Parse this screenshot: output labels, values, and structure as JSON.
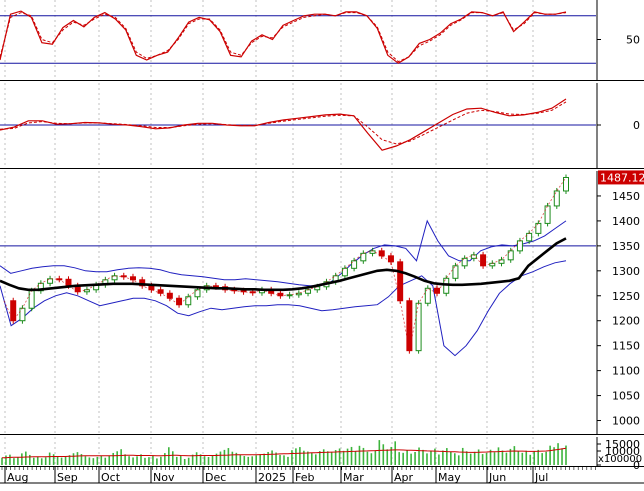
{
  "chart_data": [
    {
      "type": "line",
      "panel": "stochastic-oscillator",
      "y_ticks": [
        {
          "value": 50,
          "label": "50"
        }
      ],
      "ylim": [
        0,
        100
      ],
      "reference_lines": [
        80,
        20
      ],
      "colors": {
        "fast": "#cc0000",
        "slow": "#cc0000",
        "reference": "#1414a0"
      },
      "series": [
        {
          "style": "solid",
          "values": [
            24,
            82,
            86,
            78,
            46,
            44,
            65,
            74,
            66,
            78,
            84,
            76,
            62,
            30,
            24,
            30,
            34,
            52,
            72,
            78,
            75,
            60,
            30,
            28,
            48,
            56,
            50,
            68,
            74,
            80,
            82,
            82,
            80,
            85,
            85,
            80,
            64,
            30,
            20,
            28,
            45,
            50,
            58,
            70,
            76,
            85,
            84,
            80,
            85,
            60,
            72,
            85,
            82,
            82,
            85
          ]
        },
        {
          "style": "dashed",
          "values": [
            28,
            78,
            84,
            80,
            50,
            46,
            62,
            72,
            68,
            76,
            82,
            78,
            64,
            34,
            26,
            30,
            36,
            50,
            70,
            76,
            76,
            62,
            34,
            30,
            46,
            54,
            52,
            66,
            72,
            78,
            80,
            82,
            80,
            84,
            84,
            80,
            66,
            34,
            22,
            28,
            42,
            48,
            56,
            68,
            75,
            84,
            84,
            80,
            84,
            62,
            70,
            84,
            82,
            82,
            84
          ]
        }
      ]
    },
    {
      "type": "line",
      "panel": "macd",
      "y_ticks": [
        {
          "value": 0,
          "label": "0"
        }
      ],
      "ylim": [
        -1,
        1
      ],
      "reference_lines": [
        0
      ],
      "series": [
        {
          "style": "solid",
          "values": [
            -0.12,
            -0.05,
            0.1,
            0.1,
            0.02,
            0.03,
            0.06,
            0.05,
            0.02,
            0.0,
            -0.04,
            -0.09,
            -0.07,
            0.0,
            0.04,
            0.04,
            0.0,
            -0.02,
            -0.02,
            0.06,
            0.12,
            0.16,
            0.2,
            0.24,
            0.26,
            0.22,
            -0.2,
            -0.6,
            -0.5,
            -0.35,
            -0.15,
            0.05,
            0.25,
            0.38,
            0.4,
            0.3,
            0.22,
            0.24,
            0.3,
            0.4,
            0.62
          ]
        },
        {
          "style": "dashed",
          "values": [
            -0.1,
            -0.08,
            0.05,
            0.08,
            0.04,
            0.03,
            0.05,
            0.05,
            0.03,
            0.01,
            -0.02,
            -0.06,
            -0.06,
            -0.02,
            0.02,
            0.03,
            0.01,
            -0.01,
            -0.01,
            0.04,
            0.09,
            0.13,
            0.17,
            0.21,
            0.23,
            0.22,
            -0.05,
            -0.35,
            -0.45,
            -0.38,
            -0.22,
            -0.05,
            0.12,
            0.28,
            0.35,
            0.32,
            0.26,
            0.25,
            0.28,
            0.35,
            0.55
          ]
        }
      ]
    },
    {
      "type": "candlestick",
      "panel": "price",
      "ylim": [
        975,
        1500
      ],
      "y_ticks": [
        {
          "value": 1000,
          "label": "1000"
        },
        {
          "value": 1050,
          "label": "1050"
        },
        {
          "value": 1100,
          "label": "1100"
        },
        {
          "value": 1150,
          "label": "1150"
        },
        {
          "value": 1200,
          "label": "1200"
        },
        {
          "value": 1250,
          "label": "1250"
        },
        {
          "value": 1300,
          "label": "1300"
        },
        {
          "value": 1350,
          "label": "1350"
        },
        {
          "value": 1400,
          "label": "1400"
        },
        {
          "value": 1450,
          "label": "1450"
        }
      ],
      "last_price": {
        "value": 1487.12,
        "label": "1487.120",
        "color": "#cc0000"
      },
      "reference_lines": [
        1350
      ],
      "close": [
        1240,
        1200,
        1225,
        1260,
        1275,
        1284,
        1283,
        1270,
        1258,
        1262,
        1272,
        1282,
        1290,
        1288,
        1282,
        1270,
        1262,
        1255,
        1245,
        1232,
        1248,
        1262,
        1270,
        1268,
        1262,
        1260,
        1258,
        1256,
        1262,
        1255,
        1250,
        1252,
        1255,
        1262,
        1268,
        1278,
        1290,
        1305,
        1320,
        1335,
        1340,
        1330,
        1318,
        1240,
        1140,
        1235,
        1265,
        1255,
        1285,
        1310,
        1325,
        1332,
        1310,
        1315,
        1322,
        1340,
        1360,
        1375,
        1395,
        1430,
        1460,
        1487
      ],
      "ma_slow": [
        1280,
        1272,
        1265,
        1262,
        1262,
        1264,
        1266,
        1268,
        1270,
        1271,
        1272,
        1273,
        1274,
        1274,
        1274,
        1273,
        1272,
        1271,
        1270,
        1269,
        1268,
        1267,
        1266,
        1265,
        1265,
        1264,
        1263,
        1263,
        1262,
        1262,
        1262,
        1263,
        1265,
        1268,
        1272,
        1276,
        1280,
        1285,
        1290,
        1295,
        1300,
        1302,
        1300,
        1295,
        1288,
        1280,
        1275,
        1273,
        1272,
        1272,
        1273,
        1274,
        1276,
        1278,
        1280,
        1285,
        1310,
        1325,
        1340,
        1355,
        1365
      ],
      "bollinger_upper": [
        1310,
        1295,
        1300,
        1305,
        1308,
        1310,
        1310,
        1306,
        1300,
        1298,
        1298,
        1302,
        1305,
        1306,
        1305,
        1302,
        1296,
        1292,
        1290,
        1288,
        1285,
        1282,
        1282,
        1284,
        1282,
        1280,
        1278,
        1275,
        1272,
        1270,
        1270,
        1278,
        1295,
        1315,
        1332,
        1345,
        1352,
        1350,
        1345,
        1320,
        1400,
        1360,
        1330,
        1320,
        1320,
        1340,
        1348,
        1352,
        1350,
        1354,
        1360,
        1370,
        1385,
        1400
      ],
      "bollinger_lower": [
        1270,
        1190,
        1205,
        1225,
        1240,
        1250,
        1256,
        1250,
        1240,
        1230,
        1235,
        1240,
        1245,
        1245,
        1240,
        1230,
        1215,
        1210,
        1218,
        1225,
        1222,
        1225,
        1228,
        1230,
        1230,
        1232,
        1232,
        1230,
        1225,
        1220,
        1222,
        1225,
        1228,
        1230,
        1232,
        1248,
        1270,
        1280,
        1290,
        1270,
        1150,
        1130,
        1150,
        1180,
        1220,
        1255,
        1275,
        1290,
        1298,
        1308,
        1316,
        1320
      ]
    },
    {
      "type": "bar",
      "panel": "volume",
      "ylabel": "x100000",
      "ylim": [
        0,
        20000
      ],
      "y_ticks": [
        {
          "value": 15000,
          "label": "15000"
        },
        {
          "value": 10000,
          "label": "10000"
        },
        {
          "value": 0,
          "label": "0"
        }
      ],
      "ma_label": "0",
      "colors": {
        "bar": "#3cb43c",
        "ma": "#cc0000"
      },
      "values": [
        5200,
        6800,
        7400,
        4900,
        5600,
        8300,
        9600,
        7200,
        5200,
        6100,
        4800,
        5500,
        8900,
        7700,
        6100,
        5300,
        5900,
        7000,
        8400,
        9200,
        7800,
        6300,
        5400,
        4900,
        5800,
        6700,
        5200,
        6400,
        8600,
        9800,
        11300,
        7600,
        6300,
        5400,
        6200,
        7600,
        5100,
        5600,
        6900,
        4700,
        5900,
        8500,
        12700,
        9800,
        5800,
        6400,
        4300,
        5200,
        7400,
        9100,
        7600,
        6300,
        5700,
        6600,
        8100,
        9600,
        10800,
        12100,
        9500,
        8700,
        7100,
        6400,
        5800,
        6200,
        6900,
        7700,
        8100,
        9300,
        10400,
        8900,
        7200,
        6900,
        5800,
        10600,
        11900,
        12800,
        10200,
        9600,
        8800,
        7600,
        9900,
        11200,
        9800,
        9100,
        10700,
        11800,
        10100,
        11700,
        12900,
        9800,
        13700,
        12200,
        9500,
        8400,
        10500,
        17800,
        14800,
        11200,
        12900,
        16900,
        9200,
        8700,
        10400,
        8100,
        9300,
        12500,
        10800,
        8300,
        9900,
        11700,
        7500,
        10300,
        12100,
        9500,
        8400,
        6900,
        12200,
        9800,
        8100,
        9400,
        11100,
        7800,
        8600,
        10900,
        9100,
        12600,
        10300,
        8800,
        11500,
        13500,
        9900,
        8700,
        10200,
        7300,
        9600,
        10800,
        8500,
        9400,
        13800,
        12700,
        15600,
        11900,
        13900
      ],
      "ma": [
        5200,
        5200,
        5400,
        5500,
        5500,
        5600,
        5700,
        5800,
        5900,
        5900,
        5900,
        5900,
        6000,
        6100,
        6100,
        6100,
        6100,
        6200,
        6300,
        6400,
        6500,
        6600,
        6600,
        6600,
        6600,
        6600,
        6600,
        6600,
        6600,
        6700,
        6800,
        6900,
        6900,
        6900,
        6800,
        6800,
        6800,
        6800,
        6700,
        6600,
        6600,
        6700,
        6800,
        6900,
        6900,
        6800,
        6700,
        6600,
        6600,
        6700,
        6800,
        6800,
        6800,
        6800,
        6800,
        6900,
        7000,
        7100,
        7200,
        7300,
        7300,
        7300,
        7300,
        7300,
        7300,
        7400,
        7500,
        7600,
        7700,
        7800,
        7900,
        8000,
        8100,
        8200,
        8300,
        8400,
        8500,
        8600,
        8700,
        8800,
        8900,
        9000,
        9100,
        9200,
        9300,
        9400,
        9500,
        9600,
        9700,
        9800,
        9900,
        10000,
        10100,
        10200,
        10300,
        10400,
        10500,
        10600,
        10700,
        10800,
        10800,
        10700,
        10600,
        10500,
        10400,
        10300,
        10200,
        10100,
        10000,
        9900,
        9800,
        9700,
        9600,
        9500,
        9400,
        9300,
        9200,
        9100,
        9000,
        9000,
        9100,
        9200,
        9300,
        9400,
        9500,
        9600,
        9700,
        9800,
        9900,
        10000,
        9900,
        9900,
        9800,
        9700,
        9700,
        9800,
        9900,
        10000,
        10300,
        10700,
        11100,
        11500,
        12000
      ]
    }
  ],
  "x_axis": {
    "labels": [
      "Aug",
      "Sep",
      "Oct",
      "Nov",
      "Dec",
      "2025",
      "Feb",
      "Mar",
      "Apr",
      "May",
      "Jun",
      "Jul"
    ]
  }
}
